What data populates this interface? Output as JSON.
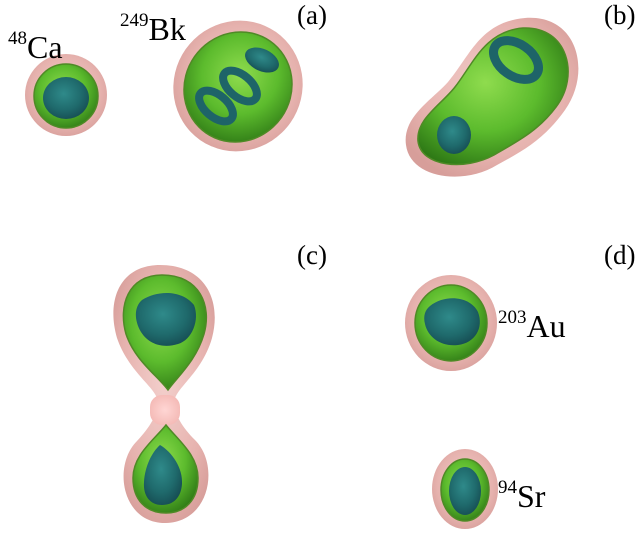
{
  "panels": {
    "a": {
      "label": "(a)"
    },
    "b": {
      "label": "(b)"
    },
    "c": {
      "label": "(c)"
    },
    "d": {
      "label": "(d)"
    }
  },
  "nuclei": {
    "ca": {
      "mass": "48",
      "symbol": "Ca"
    },
    "bk": {
      "mass": "249",
      "symbol": "Bk"
    },
    "au": {
      "mass": "203",
      "symbol": "Au"
    },
    "sr": {
      "mass": "94",
      "symbol": "Sr"
    }
  },
  "colors": {
    "outer_shell": "#e8b7b3",
    "middle_shell": "#58b82c",
    "inner_core": "#1e6468"
  }
}
